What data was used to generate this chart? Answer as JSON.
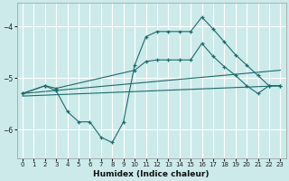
{
  "background_color": "#cceaea",
  "grid_color": "#ffffff",
  "line_color": "#1c6b6b",
  "xlabel": "Humidex (Indice chaleur)",
  "xlim": [
    -0.5,
    23.5
  ],
  "ylim": [
    -6.55,
    -3.55
  ],
  "yticks": [
    -6,
    -5,
    -4
  ],
  "xticks": [
    0,
    1,
    2,
    3,
    4,
    5,
    6,
    7,
    8,
    9,
    10,
    11,
    12,
    13,
    14,
    15,
    16,
    17,
    18,
    19,
    20,
    21,
    22,
    23
  ],
  "series": [
    {
      "x": [
        0,
        2,
        3,
        4,
        5,
        6,
        7,
        8,
        9,
        10,
        11,
        12,
        13,
        14,
        15,
        16,
        17,
        18,
        19,
        20,
        21,
        22,
        23
      ],
      "y": [
        -5.3,
        -5.15,
        -5.25,
        -5.65,
        -5.85,
        -5.85,
        -6.15,
        -6.25,
        -5.85,
        -4.75,
        -4.2,
        -4.1,
        -4.1,
        -4.1,
        -4.1,
        -3.82,
        -4.05,
        -4.3,
        -4.55,
        -4.75,
        -4.95,
        -5.15,
        -5.15
      ],
      "marker": true
    },
    {
      "x": [
        0,
        2,
        3,
        10,
        11,
        12,
        13,
        14,
        15,
        16,
        17,
        18,
        19,
        20,
        21,
        22,
        23
      ],
      "y": [
        -5.3,
        -5.15,
        -5.2,
        -4.85,
        -4.68,
        -4.65,
        -4.65,
        -4.65,
        -4.65,
        -4.33,
        -4.58,
        -4.78,
        -4.95,
        -5.15,
        -5.3,
        -5.15,
        -5.15
      ],
      "marker": true
    },
    {
      "x": [
        0,
        23
      ],
      "y": [
        -5.3,
        -4.85
      ],
      "marker": false
    },
    {
      "x": [
        0,
        23
      ],
      "y": [
        -5.35,
        -5.15
      ],
      "marker": false
    }
  ]
}
